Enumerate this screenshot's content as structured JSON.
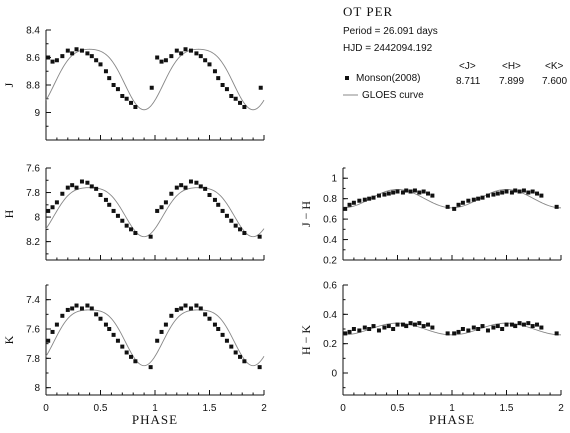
{
  "header": {
    "star_name": "OT PER",
    "period_line": "Period = 26.091 days",
    "hjd_line": "HJD = 2442094.192"
  },
  "legend": {
    "means": [
      {
        "label": "<J>",
        "value": "8.711"
      },
      {
        "label": "<H>",
        "value": "7.899"
      },
      {
        "label": "<K>",
        "value": "7.600"
      }
    ],
    "entries": [
      {
        "label": "Monson(2008)",
        "marker": "square"
      },
      {
        "label": "GLOES curve",
        "marker": "line"
      }
    ]
  },
  "axes_labels": {
    "x_left": "PHASE",
    "x_right": "PHASE"
  },
  "colors": {
    "points": "#111111",
    "curve": "#888888",
    "axis": "#111111"
  },
  "chart_data": [
    {
      "id": "J",
      "type": "scatter",
      "ylabel": "J",
      "xlim": [
        0,
        2
      ],
      "ylim": [
        9.2,
        8.4
      ],
      "inverted_y": true,
      "yticks": [
        "8.4",
        "8.6",
        "8.8",
        "9"
      ],
      "ytick_values": [
        8.4,
        8.6,
        8.8,
        9.0
      ],
      "curve": {
        "mean": 8.72,
        "a1": 0.22,
        "a2": 0.04,
        "phase_min": 0.9
      },
      "points": [
        [
          0.02,
          8.6
        ],
        [
          0.06,
          8.63
        ],
        [
          0.1,
          8.62
        ],
        [
          0.15,
          8.59
        ],
        [
          0.2,
          8.55
        ],
        [
          0.24,
          8.57
        ],
        [
          0.28,
          8.54
        ],
        [
          0.33,
          8.55
        ],
        [
          0.38,
          8.57
        ],
        [
          0.42,
          8.59
        ],
        [
          0.46,
          8.62
        ],
        [
          0.5,
          8.65
        ],
        [
          0.55,
          8.7
        ],
        [
          0.58,
          8.75
        ],
        [
          0.62,
          8.8
        ],
        [
          0.66,
          8.83
        ],
        [
          0.7,
          8.88
        ],
        [
          0.74,
          8.9
        ],
        [
          0.78,
          8.93
        ],
        [
          0.82,
          8.96
        ],
        [
          0.97,
          8.82
        ],
        [
          1.02,
          8.6
        ],
        [
          1.06,
          8.63
        ],
        [
          1.1,
          8.62
        ],
        [
          1.15,
          8.59
        ],
        [
          1.2,
          8.55
        ],
        [
          1.24,
          8.57
        ],
        [
          1.28,
          8.54
        ],
        [
          1.33,
          8.55
        ],
        [
          1.38,
          8.57
        ],
        [
          1.42,
          8.59
        ],
        [
          1.46,
          8.62
        ],
        [
          1.5,
          8.65
        ],
        [
          1.55,
          8.7
        ],
        [
          1.58,
          8.75
        ],
        [
          1.62,
          8.8
        ],
        [
          1.66,
          8.83
        ],
        [
          1.7,
          8.88
        ],
        [
          1.74,
          8.9
        ],
        [
          1.78,
          8.93
        ],
        [
          1.82,
          8.96
        ],
        [
          1.97,
          8.82
        ]
      ]
    },
    {
      "id": "H",
      "type": "scatter",
      "ylabel": "H",
      "xlim": [
        0,
        2
      ],
      "ylim": [
        8.35,
        7.6
      ],
      "inverted_y": true,
      "yticks": [
        "7.6",
        "7.8",
        "8",
        "8.2"
      ],
      "ytick_values": [
        7.6,
        7.8,
        8.0,
        8.2
      ],
      "curve": {
        "mean": 7.92,
        "a1": 0.2,
        "a2": 0.04,
        "phase_min": 0.9
      },
      "points": [
        [
          0.02,
          7.95
        ],
        [
          0.06,
          7.92
        ],
        [
          0.1,
          7.88
        ],
        [
          0.15,
          7.81
        ],
        [
          0.2,
          7.76
        ],
        [
          0.24,
          7.74
        ],
        [
          0.28,
          7.76
        ],
        [
          0.33,
          7.71
        ],
        [
          0.38,
          7.72
        ],
        [
          0.42,
          7.75
        ],
        [
          0.46,
          7.77
        ],
        [
          0.5,
          7.82
        ],
        [
          0.55,
          7.86
        ],
        [
          0.58,
          7.9
        ],
        [
          0.62,
          7.95
        ],
        [
          0.66,
          7.99
        ],
        [
          0.7,
          8.03
        ],
        [
          0.74,
          8.07
        ],
        [
          0.78,
          8.1
        ],
        [
          0.82,
          8.13
        ],
        [
          0.96,
          8.16
        ],
        [
          1.02,
          7.95
        ],
        [
          1.06,
          7.92
        ],
        [
          1.1,
          7.88
        ],
        [
          1.15,
          7.81
        ],
        [
          1.2,
          7.76
        ],
        [
          1.24,
          7.74
        ],
        [
          1.28,
          7.76
        ],
        [
          1.33,
          7.71
        ],
        [
          1.38,
          7.72
        ],
        [
          1.42,
          7.75
        ],
        [
          1.46,
          7.77
        ],
        [
          1.5,
          7.82
        ],
        [
          1.55,
          7.86
        ],
        [
          1.58,
          7.9
        ],
        [
          1.62,
          7.95
        ],
        [
          1.66,
          7.99
        ],
        [
          1.7,
          8.03
        ],
        [
          1.74,
          8.07
        ],
        [
          1.78,
          8.1
        ],
        [
          1.82,
          8.13
        ],
        [
          1.96,
          8.16
        ]
      ]
    },
    {
      "id": "K",
      "type": "scatter",
      "ylabel": "K",
      "xlim": [
        0,
        2
      ],
      "ylim": [
        8.05,
        7.3
      ],
      "inverted_y": true,
      "yticks": [
        "7.4",
        "7.6",
        "7.8",
        "8"
      ],
      "ytick_values": [
        7.4,
        7.6,
        7.8,
        8.0
      ],
      "curve": {
        "mean": 7.62,
        "a1": 0.19,
        "a2": 0.04,
        "phase_min": 0.9
      },
      "points": [
        [
          0.02,
          7.68
        ],
        [
          0.06,
          7.62
        ],
        [
          0.1,
          7.57
        ],
        [
          0.15,
          7.51
        ],
        [
          0.2,
          7.47
        ],
        [
          0.24,
          7.46
        ],
        [
          0.28,
          7.44
        ],
        [
          0.33,
          7.46
        ],
        [
          0.38,
          7.44
        ],
        [
          0.42,
          7.46
        ],
        [
          0.46,
          7.5
        ],
        [
          0.5,
          7.53
        ],
        [
          0.55,
          7.57
        ],
        [
          0.58,
          7.6
        ],
        [
          0.62,
          7.64
        ],
        [
          0.66,
          7.68
        ],
        [
          0.7,
          7.72
        ],
        [
          0.74,
          7.76
        ],
        [
          0.78,
          7.79
        ],
        [
          0.82,
          7.82
        ],
        [
          0.96,
          7.86
        ],
        [
          1.02,
          7.68
        ],
        [
          1.06,
          7.62
        ],
        [
          1.1,
          7.57
        ],
        [
          1.15,
          7.51
        ],
        [
          1.2,
          7.47
        ],
        [
          1.24,
          7.46
        ],
        [
          1.28,
          7.44
        ],
        [
          1.33,
          7.46
        ],
        [
          1.38,
          7.44
        ],
        [
          1.42,
          7.46
        ],
        [
          1.46,
          7.5
        ],
        [
          1.5,
          7.53
        ],
        [
          1.55,
          7.57
        ],
        [
          1.58,
          7.6
        ],
        [
          1.62,
          7.64
        ],
        [
          1.66,
          7.68
        ],
        [
          1.7,
          7.72
        ],
        [
          1.74,
          7.76
        ],
        [
          1.78,
          7.79
        ],
        [
          1.82,
          7.82
        ],
        [
          1.96,
          7.86
        ]
      ]
    },
    {
      "id": "JH",
      "type": "scatter",
      "ylabel": "J − H",
      "xlim": [
        0,
        2
      ],
      "ylim": [
        0.2,
        1.1
      ],
      "inverted_y": false,
      "yticks": [
        "0.2",
        "0.4",
        "0.6",
        "0.8",
        "1"
      ],
      "ytick_values": [
        0.2,
        0.4,
        0.6,
        0.8,
        1.0
      ],
      "curve": {
        "mean": 0.8,
        "a1": -0.09,
        "a2": 0.0,
        "phase_min": 0.0
      },
      "points": [
        [
          0.02,
          0.7
        ],
        [
          0.06,
          0.74
        ],
        [
          0.1,
          0.76
        ],
        [
          0.15,
          0.78
        ],
        [
          0.2,
          0.79
        ],
        [
          0.24,
          0.8
        ],
        [
          0.28,
          0.81
        ],
        [
          0.33,
          0.83
        ],
        [
          0.38,
          0.84
        ],
        [
          0.42,
          0.85
        ],
        [
          0.46,
          0.86
        ],
        [
          0.5,
          0.87
        ],
        [
          0.55,
          0.86
        ],
        [
          0.58,
          0.88
        ],
        [
          0.62,
          0.87
        ],
        [
          0.66,
          0.88
        ],
        [
          0.7,
          0.86
        ],
        [
          0.74,
          0.87
        ],
        [
          0.78,
          0.85
        ],
        [
          0.82,
          0.83
        ],
        [
          0.96,
          0.72
        ],
        [
          1.02,
          0.7
        ],
        [
          1.06,
          0.74
        ],
        [
          1.1,
          0.76
        ],
        [
          1.15,
          0.78
        ],
        [
          1.2,
          0.79
        ],
        [
          1.24,
          0.8
        ],
        [
          1.28,
          0.81
        ],
        [
          1.33,
          0.83
        ],
        [
          1.38,
          0.84
        ],
        [
          1.42,
          0.85
        ],
        [
          1.46,
          0.86
        ],
        [
          1.5,
          0.87
        ],
        [
          1.55,
          0.86
        ],
        [
          1.58,
          0.88
        ],
        [
          1.62,
          0.87
        ],
        [
          1.66,
          0.88
        ],
        [
          1.7,
          0.86
        ],
        [
          1.74,
          0.87
        ],
        [
          1.78,
          0.85
        ],
        [
          1.82,
          0.83
        ],
        [
          1.96,
          0.72
        ]
      ]
    },
    {
      "id": "HK",
      "type": "scatter",
      "ylabel": "H − K",
      "xlim": [
        0,
        2
      ],
      "ylim": [
        -0.15,
        0.6
      ],
      "inverted_y": false,
      "yticks": [
        "0",
        "0.2",
        "0.4",
        "0.6"
      ],
      "ytick_values": [
        0,
        0.2,
        0.4,
        0.6
      ],
      "curve": {
        "mean": 0.3,
        "a1": -0.04,
        "a2": 0.0,
        "phase_min": 0.0
      },
      "points": [
        [
          0.02,
          0.27
        ],
        [
          0.06,
          0.28
        ],
        [
          0.1,
          0.3
        ],
        [
          0.15,
          0.29
        ],
        [
          0.2,
          0.31
        ],
        [
          0.24,
          0.3
        ],
        [
          0.28,
          0.32
        ],
        [
          0.33,
          0.29
        ],
        [
          0.38,
          0.31
        ],
        [
          0.42,
          0.32
        ],
        [
          0.46,
          0.3
        ],
        [
          0.5,
          0.33
        ],
        [
          0.55,
          0.33
        ],
        [
          0.58,
          0.32
        ],
        [
          0.62,
          0.34
        ],
        [
          0.66,
          0.33
        ],
        [
          0.7,
          0.34
        ],
        [
          0.74,
          0.32
        ],
        [
          0.78,
          0.33
        ],
        [
          0.82,
          0.31
        ],
        [
          0.96,
          0.27
        ],
        [
          1.02,
          0.27
        ],
        [
          1.06,
          0.28
        ],
        [
          1.1,
          0.3
        ],
        [
          1.15,
          0.29
        ],
        [
          1.2,
          0.31
        ],
        [
          1.24,
          0.3
        ],
        [
          1.28,
          0.32
        ],
        [
          1.33,
          0.29
        ],
        [
          1.38,
          0.31
        ],
        [
          1.42,
          0.32
        ],
        [
          1.46,
          0.3
        ],
        [
          1.5,
          0.33
        ],
        [
          1.55,
          0.33
        ],
        [
          1.58,
          0.32
        ],
        [
          1.62,
          0.34
        ],
        [
          1.66,
          0.33
        ],
        [
          1.7,
          0.34
        ],
        [
          1.74,
          0.32
        ],
        [
          1.78,
          0.33
        ],
        [
          1.82,
          0.31
        ],
        [
          1.96,
          0.27
        ]
      ]
    }
  ],
  "x_axis": {
    "ticks": [
      "0",
      "0.5",
      "1",
      "1.5",
      "2"
    ],
    "tick_values": [
      0,
      0.5,
      1,
      1.5,
      2
    ]
  }
}
